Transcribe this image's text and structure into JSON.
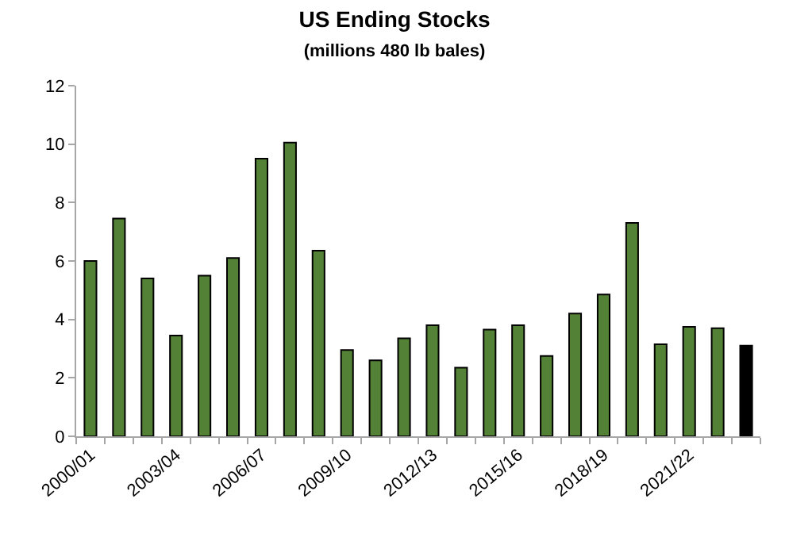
{
  "chart_data": {
    "type": "bar",
    "title": "US Ending Stocks",
    "subtitle": "(millions 480 lb bales)",
    "categories": [
      "2000/01",
      null,
      null,
      "2003/04",
      null,
      null,
      "2006/07",
      null,
      null,
      "2009/10",
      null,
      null,
      "2012/13",
      null,
      null,
      "2015/16",
      null,
      null,
      "2018/19",
      null,
      null,
      "2021/22",
      null,
      null
    ],
    "values": [
      6.0,
      7.45,
      5.4,
      3.45,
      5.5,
      6.1,
      9.5,
      10.05,
      6.35,
      2.95,
      2.6,
      3.35,
      3.8,
      2.35,
      3.65,
      3.8,
      2.75,
      4.2,
      4.85,
      7.3,
      3.15,
      3.75,
      3.7,
      3.1
    ],
    "colors": [
      "#538135",
      "#538135",
      "#538135",
      "#538135",
      "#538135",
      "#538135",
      "#538135",
      "#538135",
      "#538135",
      "#538135",
      "#538135",
      "#538135",
      "#538135",
      "#538135",
      "#538135",
      "#538135",
      "#538135",
      "#538135",
      "#538135",
      "#538135",
      "#538135",
      "#538135",
      "#538135",
      "#000000"
    ],
    "ylim": [
      0,
      12
    ],
    "yticks": [
      0,
      2,
      4,
      6,
      8,
      10,
      12
    ],
    "grid": false
  }
}
